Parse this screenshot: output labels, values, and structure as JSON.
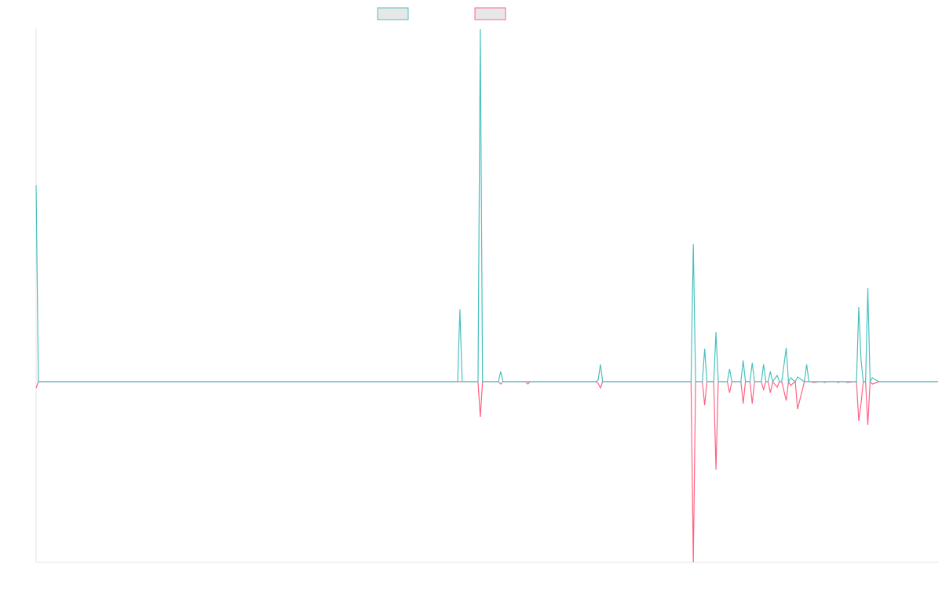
{
  "chart_data": {
    "type": "line",
    "title": "",
    "xlabel": "",
    "ylabel": "",
    "grid": false,
    "legend_position": "top-center",
    "ylim": [
      -230,
      450
    ],
    "series": [
      {
        "name": "",
        "color": "#4bc0c0",
        "fill": "#e7e7e7",
        "x": [
          0,
          1,
          2,
          186,
          187,
          188,
          195,
          196,
          197,
          204,
          205,
          206,
          216,
          217,
          218,
          247,
          248,
          249,
          250,
          251,
          289,
          290,
          291,
          294,
          295,
          296,
          299,
          300,
          301,
          305,
          306,
          307,
          311,
          312,
          313,
          315,
          316,
          317,
          320,
          321,
          322,
          323,
          324,
          325,
          327,
          328,
          329,
          331,
          332,
          333,
          334,
          335,
          336,
          339,
          340,
          341,
          342,
          343,
          346,
          347,
          348,
          349,
          353,
          354,
          355,
          357,
          358,
          361,
          362,
          363,
          364,
          365,
          366,
          367,
          368,
          369,
          370,
          372,
          373,
          374,
          378,
          379,
          380,
          382,
          383,
          384,
          385,
          386,
          387,
          388,
          389,
          390,
          391,
          392,
          393,
          394,
          395,
          396,
          397,
          398
        ],
        "values": [
          250,
          0,
          0,
          0,
          92,
          0,
          0,
          449,
          0,
          0,
          13,
          0,
          0,
          0,
          0,
          0,
          2,
          22,
          0,
          0,
          0,
          175,
          0,
          0,
          42,
          0,
          0,
          63,
          0,
          0,
          16,
          0,
          0,
          27,
          0,
          0,
          24,
          0,
          0,
          22,
          0,
          0,
          13,
          0,
          8,
          0,
          0,
          43,
          0,
          5,
          2,
          0,
          6,
          0,
          22,
          0,
          0,
          0,
          0,
          0,
          0,
          0,
          0,
          0,
          0,
          0,
          0,
          0,
          0,
          95,
          28,
          0,
          0,
          119,
          0,
          5,
          3,
          0,
          0,
          0,
          0,
          0,
          0,
          0,
          0,
          0,
          0,
          0,
          0,
          0,
          0,
          0,
          0,
          0,
          0,
          0,
          0,
          0,
          0,
          0
        ]
      },
      {
        "name": "",
        "color": "#ff6384",
        "fill": "#e7e7e7",
        "x": [
          0,
          1,
          2,
          186,
          187,
          188,
          195,
          196,
          197,
          204,
          205,
          206,
          216,
          217,
          218,
          247,
          248,
          249,
          250,
          251,
          289,
          290,
          291,
          294,
          295,
          296,
          299,
          300,
          301,
          305,
          306,
          307,
          311,
          312,
          313,
          315,
          316,
          317,
          320,
          321,
          322,
          323,
          324,
          325,
          327,
          328,
          329,
          331,
          332,
          333,
          334,
          335,
          336,
          339,
          340,
          341,
          342,
          343,
          346,
          347,
          348,
          349,
          353,
          354,
          355,
          357,
          358,
          361,
          362,
          363,
          364,
          365,
          366,
          367,
          368,
          369,
          370,
          372,
          373,
          374,
          378,
          379,
          380,
          382,
          383,
          384,
          385,
          386,
          387,
          388,
          389,
          390,
          391,
          392,
          393,
          394,
          395,
          396,
          397,
          398
        ],
        "values": [
          -8,
          0,
          0,
          0,
          0,
          0,
          0,
          -45,
          0,
          0,
          -3,
          0,
          0,
          -3,
          0,
          0,
          -2,
          -8,
          0,
          0,
          0,
          -230,
          0,
          0,
          -30,
          0,
          0,
          -112,
          0,
          0,
          -14,
          0,
          0,
          -28,
          0,
          0,
          -28,
          0,
          0,
          -10,
          0,
          0,
          -14,
          0,
          -7,
          0,
          0,
          -24,
          0,
          -5,
          -2,
          0,
          -35,
          0,
          0,
          0,
          0,
          -1,
          0,
          0,
          -1,
          0,
          0,
          -1,
          0,
          0,
          -1,
          0,
          0,
          -50,
          -28,
          0,
          0,
          -55,
          0,
          -3,
          -2,
          0,
          0,
          0,
          0,
          0,
          0,
          0,
          0,
          0,
          0,
          0,
          0,
          0,
          0,
          0,
          0,
          0,
          0,
          0,
          0,
          0,
          0,
          0
        ]
      }
    ]
  }
}
